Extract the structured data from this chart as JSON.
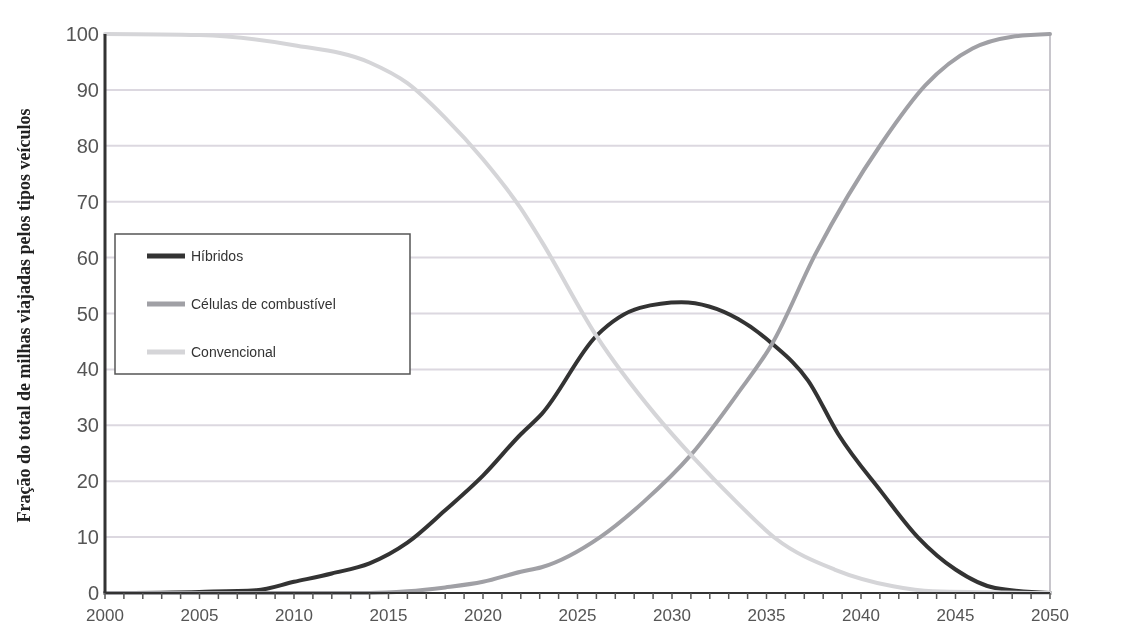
{
  "chart_data": {
    "type": "line",
    "ylabel": "Fração do total de milhas viajadas pelos tipos veículos",
    "xlim": [
      2000,
      2050
    ],
    "ylim": [
      0,
      100
    ],
    "yticks": [
      0,
      10,
      20,
      30,
      40,
      50,
      60,
      70,
      80,
      90,
      100
    ],
    "xticks": [
      2000,
      {
        "value": 2001,
        "label": null
      },
      {
        "value": 2002,
        "label": null
      },
      {
        "value": 2003,
        "label": null
      },
      {
        "value": 2004,
        "label": null
      },
      2005,
      {
        "value": 2006,
        "label": null
      },
      {
        "value": 2007,
        "label": null
      },
      {
        "value": 2008,
        "label": null
      },
      {
        "value": 2009,
        "label": null
      },
      2010,
      {
        "value": 2011,
        "label": null
      },
      {
        "value": 2012,
        "label": null
      },
      {
        "value": 2013,
        "label": null
      },
      {
        "value": 2014,
        "label": null
      },
      2015,
      {
        "value": 2016,
        "label": null
      },
      {
        "value": 2017,
        "label": null
      },
      {
        "value": 2018,
        "label": null
      },
      {
        "value": 2019,
        "label": null
      },
      2020,
      {
        "value": 2021,
        "label": null
      },
      {
        "value": 2022,
        "label": null
      },
      {
        "value": 2023,
        "label": null
      },
      {
        "value": 2024,
        "label": null
      },
      2025,
      {
        "value": 2026,
        "label": null
      },
      {
        "value": 2027,
        "label": null
      },
      {
        "value": 2028,
        "label": null
      },
      {
        "value": 2029,
        "label": null
      },
      2030,
      {
        "value": 2031,
        "label": null
      },
      {
        "value": 2032,
        "label": null
      },
      {
        "value": 2033,
        "label": null
      },
      {
        "value": 2034,
        "label": null
      },
      2035,
      {
        "value": 2036,
        "label": null
      },
      {
        "value": 2037,
        "label": null
      },
      {
        "value": 2038,
        "label": null
      },
      {
        "value": 2039,
        "label": null
      },
      2040,
      {
        "value": 2041,
        "label": null
      },
      {
        "value": 2042,
        "label": null
      },
      {
        "value": 2043,
        "label": null
      },
      {
        "value": 2044,
        "label": null
      },
      2045,
      {
        "value": 2046,
        "label": null
      },
      {
        "value": 2047,
        "label": null
      },
      {
        "value": 2048,
        "label": null
      },
      {
        "value": 2049,
        "label": null
      },
      2050
    ],
    "grid": "y",
    "legend": "left",
    "marker": "none",
    "line_style": "solid",
    "series": [
      {
        "name": "Híbridos",
        "color": "#333333",
        "x": [
          2000,
          2005,
          2008,
          2010,
          2012,
          2014,
          2016,
          2018,
          2020,
          2022,
          2023.1,
          2026,
          2028.3,
          2030.5,
          2033.5,
          2035.3,
          2037.2,
          2038.8,
          2041.1,
          2043,
          2045,
          2047.1,
          2050
        ],
        "values": [
          0,
          0.2,
          0.5,
          2,
          3.5,
          5.3,
          9,
          14.8,
          21,
          28.4,
          32,
          46,
          51,
          52,
          49,
          44.6,
          38,
          28.4,
          18,
          10,
          4.2,
          0.9,
          0
        ]
      },
      {
        "name": "Células de combustível",
        "color": "#a0a0a5",
        "x": [
          2000,
          2014,
          2016,
          2018,
          2020,
          2022,
          2023.1,
          2026.2,
          2028.5,
          2031,
          2033.5,
          2035.3,
          2037.6,
          2039.3,
          2041.1,
          2043.4,
          2045.9,
          2048,
          2050
        ],
        "values": [
          0,
          0,
          0.3,
          1,
          2,
          3.8,
          4.6,
          10,
          16.3,
          24.7,
          35.8,
          44.6,
          60.7,
          71,
          80.5,
          90.8,
          97.4,
          99.5,
          100
        ]
      },
      {
        "name": "Convencional",
        "color": "#d5d5d8",
        "x": [
          2000,
          2005,
          2010,
          2014,
          2016,
          2018,
          2020,
          2022,
          2023.1,
          2026,
          2029.1,
          2031,
          2033.5,
          2035.5,
          2038.6,
          2041.7,
          2043.8,
          2050
        ],
        "values": [
          100,
          99.8,
          98,
          94.9,
          91.2,
          85,
          77.6,
          68.8,
          62.9,
          46,
          32,
          24.7,
          16,
          9.7,
          4.2,
          1.2,
          0.3,
          0
        ]
      }
    ]
  }
}
